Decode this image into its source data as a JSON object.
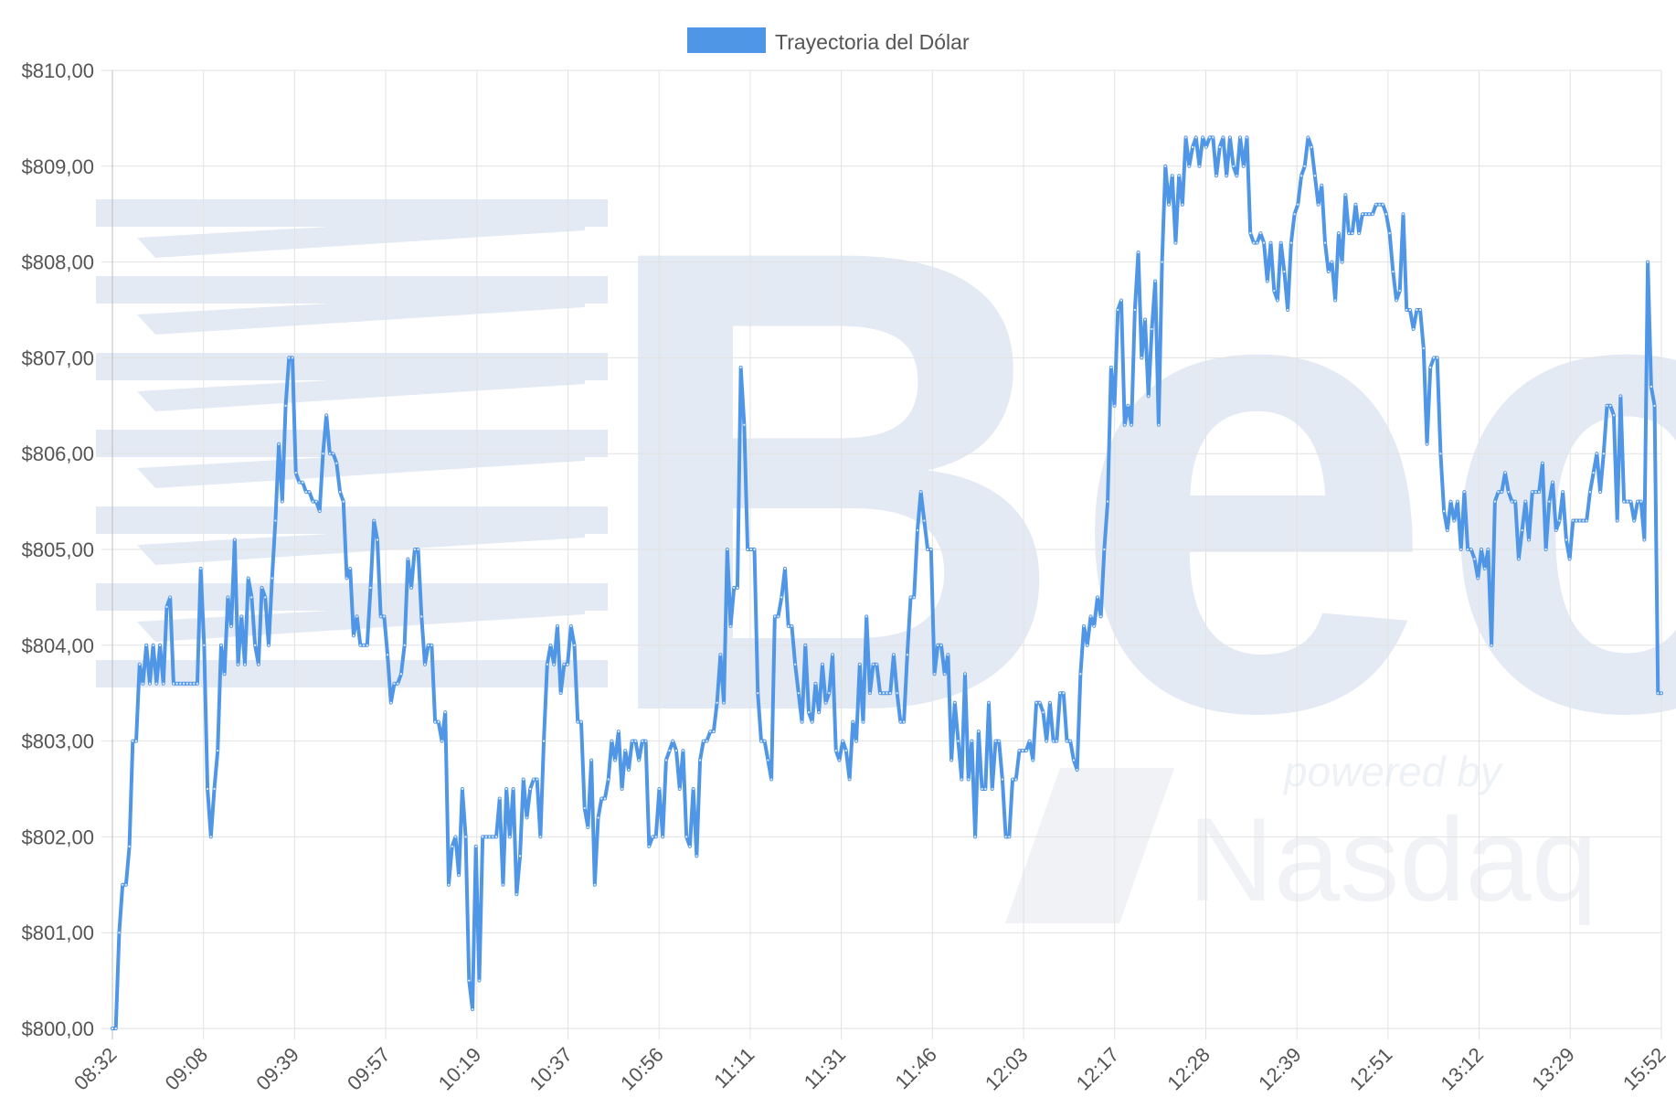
{
  "legend": {
    "label": "Trayectoria del Dólar"
  },
  "watermark": {
    "brand": "Bec",
    "powered_by": "powered by",
    "partner": "Nasdaq"
  },
  "colors": {
    "line": "#5096e6",
    "legend_swatch": "#5096e6",
    "grid": "#e2e2e2",
    "watermark": "#e4eaf3"
  },
  "chart_data": {
    "type": "line",
    "title": "",
    "xlabel": "",
    "ylabel": "",
    "ylim": [
      800,
      810
    ],
    "y_ticks": [
      800,
      801,
      802,
      803,
      804,
      805,
      806,
      807,
      808,
      809,
      810
    ],
    "y_tick_labels": [
      "$800,00",
      "$801,00",
      "$802,00",
      "$803,00",
      "$804,00",
      "$805,00",
      "$806,00",
      "$807,00",
      "$808,00",
      "$809,00",
      "$810,00"
    ],
    "x_tick_labels": [
      "08:32",
      "09:08",
      "09:39",
      "09:57",
      "10:19",
      "10:37",
      "10:56",
      "11:11",
      "11:31",
      "11:46",
      "12:03",
      "12:17",
      "12:28",
      "12:39",
      "12:51",
      "13:12",
      "13:29",
      "15:52"
    ],
    "legend_position": "top",
    "grid": true,
    "series": [
      {
        "name": "Trayectoria del Dólar",
        "values": [
          800.0,
          800.0,
          801.0,
          801.5,
          801.5,
          801.9,
          803.0,
          803.0,
          803.8,
          803.6,
          804.0,
          803.6,
          804.0,
          803.6,
          804.0,
          803.6,
          804.4,
          804.5,
          803.6,
          803.6,
          803.6,
          803.6,
          803.6,
          803.6,
          803.6,
          803.6,
          804.8,
          804.0,
          802.5,
          802.0,
          802.5,
          802.9,
          804.0,
          803.7,
          804.5,
          804.2,
          805.1,
          803.8,
          804.3,
          803.8,
          804.7,
          804.5,
          804.0,
          803.8,
          804.6,
          804.5,
          804.0,
          804.7,
          805.3,
          806.1,
          805.5,
          806.5,
          807.0,
          807.0,
          805.8,
          805.7,
          805.7,
          805.6,
          805.6,
          805.5,
          805.5,
          805.4,
          806.0,
          806.4,
          806.0,
          806.0,
          805.9,
          805.6,
          805.5,
          804.7,
          804.8,
          804.1,
          804.3,
          804.0,
          804.0,
          804.0,
          804.6,
          805.3,
          805.1,
          804.3,
          804.3,
          803.9,
          803.4,
          803.6,
          803.6,
          803.7,
          804.0,
          804.9,
          804.6,
          805.0,
          805.0,
          804.3,
          803.8,
          804.0,
          804.0,
          803.2,
          803.2,
          803.0,
          803.3,
          801.5,
          801.9,
          802.0,
          801.6,
          802.5,
          802.0,
          800.5,
          800.2,
          801.9,
          800.5,
          802.0,
          802.0,
          802.0,
          802.0,
          802.0,
          802.4,
          801.5,
          802.5,
          802.0,
          802.5,
          801.4,
          801.8,
          802.6,
          802.2,
          802.5,
          802.6,
          802.6,
          802.0,
          803.0,
          803.8,
          804.0,
          803.8,
          804.2,
          803.5,
          803.8,
          803.8,
          804.2,
          804.0,
          803.2,
          803.2,
          802.3,
          802.1,
          802.8,
          801.5,
          802.2,
          802.4,
          802.4,
          802.6,
          803.0,
          802.8,
          803.1,
          802.5,
          802.9,
          802.7,
          803.0,
          803.0,
          802.8,
          803.0,
          803.0,
          801.9,
          802.0,
          802.0,
          802.5,
          802.0,
          802.8,
          802.9,
          803.0,
          802.9,
          802.5,
          802.9,
          802.0,
          801.9,
          802.5,
          801.8,
          802.8,
          803.0,
          803.0,
          803.1,
          803.1,
          803.4,
          803.9,
          803.4,
          805.0,
          804.2,
          804.6,
          804.6,
          806.9,
          806.3,
          805.0,
          805.0,
          805.0,
          803.5,
          803.0,
          803.0,
          802.8,
          802.6,
          804.3,
          804.3,
          804.5,
          804.8,
          804.2,
          804.2,
          803.8,
          803.5,
          803.2,
          804.0,
          803.3,
          803.2,
          803.6,
          803.3,
          803.8,
          803.4,
          803.5,
          803.9,
          802.9,
          802.8,
          803.0,
          802.9,
          802.6,
          803.2,
          803.0,
          803.8,
          803.2,
          804.3,
          803.5,
          803.8,
          803.8,
          803.5,
          803.5,
          803.5,
          803.5,
          803.9,
          803.5,
          803.2,
          803.2,
          803.9,
          804.5,
          804.5,
          805.2,
          805.6,
          805.3,
          805.0,
          805.0,
          803.7,
          804.0,
          804.0,
          803.7,
          803.9,
          802.8,
          803.4,
          803.0,
          802.6,
          803.7,
          802.6,
          803.0,
          802.0,
          803.1,
          802.5,
          802.5,
          803.4,
          802.5,
          803.0,
          803.0,
          802.6,
          802.0,
          802.0,
          802.6,
          802.6,
          802.9,
          802.9,
          802.9,
          803.0,
          802.8,
          803.4,
          803.4,
          803.3,
          803.0,
          803.4,
          803.0,
          803.0,
          803.5,
          803.5,
          803.0,
          803.0,
          802.8,
          802.7,
          803.7,
          804.2,
          804.0,
          804.3,
          804.2,
          804.5,
          804.3,
          805.0,
          805.5,
          806.9,
          806.5,
          807.5,
          807.6,
          806.3,
          806.5,
          806.3,
          807.5,
          808.1,
          807.0,
          807.4,
          806.6,
          807.3,
          807.8,
          806.3,
          808.0,
          809.0,
          808.6,
          808.9,
          808.2,
          808.9,
          808.6,
          809.3,
          809.0,
          809.2,
          809.3,
          809.0,
          809.3,
          809.2,
          809.3,
          809.3,
          808.9,
          809.2,
          809.3,
          808.9,
          809.3,
          809.0,
          808.9,
          809.3,
          809.0,
          809.3,
          808.3,
          808.2,
          808.2,
          808.3,
          808.2,
          807.8,
          808.2,
          807.7,
          807.6,
          808.2,
          807.9,
          807.5,
          808.2,
          808.5,
          808.6,
          808.9,
          809.0,
          809.3,
          809.2,
          808.9,
          808.6,
          808.8,
          808.2,
          807.9,
          808.0,
          807.6,
          808.3,
          808.0,
          808.7,
          808.3,
          808.3,
          808.6,
          808.3,
          808.5,
          808.5,
          808.5,
          808.5,
          808.6,
          808.6,
          808.6,
          808.5,
          808.3,
          807.9,
          807.6,
          807.7,
          808.5,
          807.5,
          807.5,
          807.3,
          807.5,
          807.5,
          807.1,
          806.1,
          806.9,
          807.0,
          807.0,
          806.0,
          805.4,
          805.2,
          805.5,
          805.3,
          805.5,
          805.0,
          805.6,
          805.0,
          805.0,
          804.9,
          804.7,
          805.0,
          804.8,
          805.0,
          804.0,
          805.5,
          805.6,
          805.6,
          805.8,
          805.6,
          805.5,
          805.5,
          804.9,
          805.2,
          805.5,
          805.1,
          805.6,
          805.6,
          805.6,
          805.9,
          805.0,
          805.5,
          805.7,
          805.2,
          805.3,
          805.6,
          805.1,
          804.9,
          805.3,
          805.3,
          805.3,
          805.3,
          805.3,
          805.6,
          805.8,
          806.0,
          805.6,
          806.0,
          806.5,
          806.5,
          806.4,
          805.3,
          806.6,
          805.5,
          805.5,
          805.5,
          805.3,
          805.5,
          805.5,
          805.1,
          808.0,
          806.7,
          806.5,
          803.5,
          803.5
        ]
      }
    ]
  }
}
